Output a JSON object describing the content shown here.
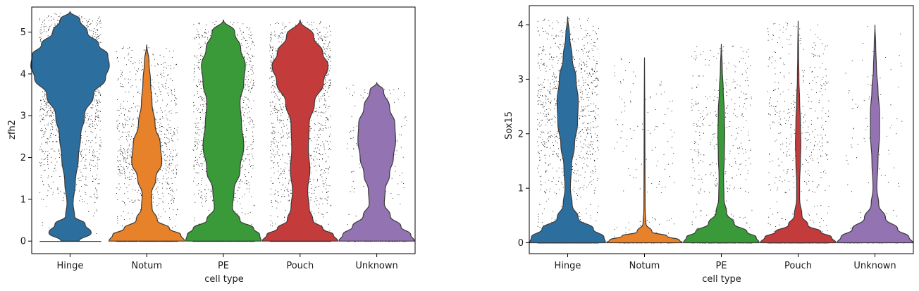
{
  "chart_data": [
    {
      "type": "violin",
      "xlabel": "cell type",
      "ylabel": "zfh2",
      "categories": [
        "Hinge",
        "Notum",
        "PE",
        "Pouch",
        "Unknown"
      ],
      "colors": [
        "#2c6f9f",
        "#e8822a",
        "#3a9a3a",
        "#c43b3b",
        "#9473b3"
      ],
      "ylim": [
        -0.3,
        5.6
      ],
      "yticks": [
        0,
        1,
        2,
        3,
        4,
        5
      ],
      "grid": false,
      "jitter_points": true,
      "violins": [
        {
          "name": "Hinge",
          "max": 5.5,
          "profile": [
            [
              0.0,
              0.12
            ],
            [
              0.2,
              0.28
            ],
            [
              0.4,
              0.2
            ],
            [
              0.6,
              0.06
            ],
            [
              0.9,
              0.04
            ],
            [
              1.4,
              0.07
            ],
            [
              2.0,
              0.11
            ],
            [
              2.5,
              0.14
            ],
            [
              3.0,
              0.19
            ],
            [
              3.5,
              0.31
            ],
            [
              3.9,
              0.47
            ],
            [
              4.2,
              0.52
            ],
            [
              4.45,
              0.5
            ],
            [
              4.7,
              0.38
            ],
            [
              5.0,
              0.23
            ],
            [
              5.3,
              0.13
            ],
            [
              5.5,
              0.0
            ]
          ],
          "points": 2600
        },
        {
          "name": "Notum",
          "max": 4.7,
          "profile": [
            [
              0.0,
              0.5
            ],
            [
              0.15,
              0.45
            ],
            [
              0.3,
              0.3
            ],
            [
              0.5,
              0.14
            ],
            [
              0.8,
              0.07
            ],
            [
              1.1,
              0.06
            ],
            [
              1.5,
              0.12
            ],
            [
              1.9,
              0.2
            ],
            [
              2.3,
              0.18
            ],
            [
              2.8,
              0.11
            ],
            [
              3.3,
              0.07
            ],
            [
              3.8,
              0.05
            ],
            [
              4.3,
              0.03
            ],
            [
              4.7,
              0.0
            ]
          ],
          "points": 1100
        },
        {
          "name": "PE",
          "max": 5.3,
          "profile": [
            [
              0.0,
              0.5
            ],
            [
              0.15,
              0.48
            ],
            [
              0.3,
              0.4
            ],
            [
              0.5,
              0.22
            ],
            [
              0.8,
              0.12
            ],
            [
              1.2,
              0.14
            ],
            [
              1.7,
              0.22
            ],
            [
              2.3,
              0.27
            ],
            [
              2.8,
              0.24
            ],
            [
              3.3,
              0.22
            ],
            [
              3.8,
              0.27
            ],
            [
              4.2,
              0.29
            ],
            [
              4.6,
              0.23
            ],
            [
              5.0,
              0.15
            ],
            [
              5.3,
              0.0
            ]
          ],
          "points": 1400
        },
        {
          "name": "Pouch",
          "max": 5.3,
          "profile": [
            [
              0.0,
              0.5
            ],
            [
              0.15,
              0.44
            ],
            [
              0.3,
              0.3
            ],
            [
              0.5,
              0.17
            ],
            [
              0.8,
              0.12
            ],
            [
              1.2,
              0.1
            ],
            [
              1.7,
              0.13
            ],
            [
              2.2,
              0.11
            ],
            [
              2.8,
              0.12
            ],
            [
              3.3,
              0.19
            ],
            [
              3.8,
              0.31
            ],
            [
              4.2,
              0.37
            ],
            [
              4.5,
              0.3
            ],
            [
              4.9,
              0.18
            ],
            [
              5.3,
              0.0
            ]
          ],
          "points": 1900
        },
        {
          "name": "Unknown",
          "max": 3.8,
          "profile": [
            [
              0.0,
              0.5
            ],
            [
              0.15,
              0.45
            ],
            [
              0.35,
              0.32
            ],
            [
              0.6,
              0.18
            ],
            [
              0.9,
              0.1
            ],
            [
              1.2,
              0.11
            ],
            [
              1.6,
              0.17
            ],
            [
              2.0,
              0.22
            ],
            [
              2.4,
              0.25
            ],
            [
              2.8,
              0.24
            ],
            [
              3.2,
              0.17
            ],
            [
              3.6,
              0.09
            ],
            [
              3.8,
              0.0
            ]
          ],
          "points": 200
        }
      ]
    },
    {
      "type": "violin",
      "xlabel": "cell type",
      "ylabel": "Sox15",
      "categories": [
        "Hinge",
        "Notum",
        "PE",
        "Pouch",
        "Unknown"
      ],
      "colors": [
        "#2c6f9f",
        "#e8822a",
        "#3a9a3a",
        "#c43b3b",
        "#9473b3"
      ],
      "ylim": [
        -0.2,
        4.35
      ],
      "yticks": [
        0,
        1,
        2,
        3,
        4
      ],
      "grid": false,
      "jitter_points": true,
      "violins": [
        {
          "name": "Hinge",
          "max": 4.15,
          "profile": [
            [
              0.0,
              0.5
            ],
            [
              0.1,
              0.48
            ],
            [
              0.25,
              0.34
            ],
            [
              0.45,
              0.14
            ],
            [
              0.7,
              0.06
            ],
            [
              1.0,
              0.035
            ],
            [
              1.4,
              0.05
            ],
            [
              1.8,
              0.09
            ],
            [
              2.2,
              0.13
            ],
            [
              2.6,
              0.14
            ],
            [
              3.0,
              0.11
            ],
            [
              3.4,
              0.06
            ],
            [
              3.8,
              0.025
            ],
            [
              4.15,
              0.0
            ]
          ],
          "points": 1600
        },
        {
          "name": "Notum",
          "max": 3.4,
          "profile": [
            [
              0.0,
              0.5
            ],
            [
              0.05,
              0.46
            ],
            [
              0.12,
              0.3
            ],
            [
              0.2,
              0.1
            ],
            [
              0.35,
              0.02
            ],
            [
              0.6,
              0.008
            ],
            [
              1.5,
              0.006
            ],
            [
              2.5,
              0.004
            ],
            [
              3.4,
              0.0
            ]
          ],
          "points": 180
        },
        {
          "name": "PE",
          "max": 3.65,
          "profile": [
            [
              0.0,
              0.5
            ],
            [
              0.1,
              0.46
            ],
            [
              0.2,
              0.34
            ],
            [
              0.35,
              0.17
            ],
            [
              0.55,
              0.07
            ],
            [
              0.8,
              0.035
            ],
            [
              1.2,
              0.03
            ],
            [
              1.6,
              0.04
            ],
            [
              2.0,
              0.045
            ],
            [
              2.4,
              0.04
            ],
            [
              2.8,
              0.025
            ],
            [
              3.2,
              0.012
            ],
            [
              3.65,
              0.0
            ]
          ],
          "points": 500
        },
        {
          "name": "Pouch",
          "max": 4.07,
          "profile": [
            [
              0.0,
              0.5
            ],
            [
              0.1,
              0.44
            ],
            [
              0.2,
              0.3
            ],
            [
              0.32,
              0.13
            ],
            [
              0.5,
              0.05
            ],
            [
              0.8,
              0.02
            ],
            [
              1.1,
              0.02
            ],
            [
              1.5,
              0.03
            ],
            [
              1.8,
              0.035
            ],
            [
              2.2,
              0.03
            ],
            [
              2.6,
              0.02
            ],
            [
              3.0,
              0.01
            ],
            [
              3.5,
              0.006
            ],
            [
              4.07,
              0.0
            ]
          ],
          "points": 600
        },
        {
          "name": "Unknown",
          "max": 4.0,
          "profile": [
            [
              0.0,
              0.5
            ],
            [
              0.1,
              0.45
            ],
            [
              0.25,
              0.3
            ],
            [
              0.45,
              0.14
            ],
            [
              0.7,
              0.05
            ],
            [
              1.0,
              0.025
            ],
            [
              1.5,
              0.04
            ],
            [
              2.0,
              0.06
            ],
            [
              2.4,
              0.06
            ],
            [
              2.8,
              0.04
            ],
            [
              3.2,
              0.02
            ],
            [
              3.6,
              0.01
            ],
            [
              4.0,
              0.0
            ]
          ],
          "points": 120
        }
      ]
    }
  ]
}
